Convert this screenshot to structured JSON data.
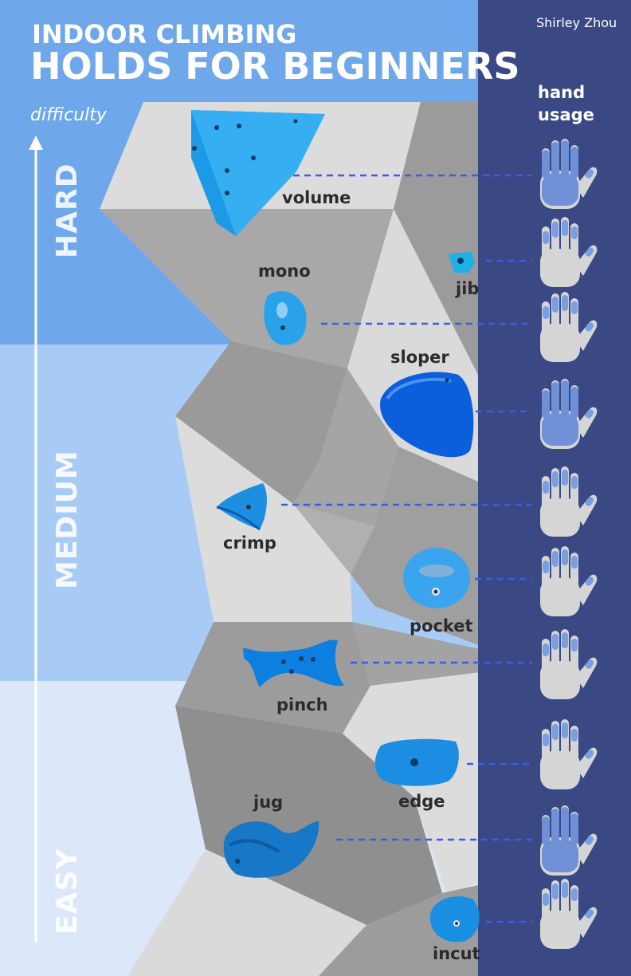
{
  "header": {
    "title_line1": "INDOOR CLIMBING",
    "title_line2": "HOLDS FOR BEGINNERS",
    "author": "Shirley Zhou"
  },
  "axis": {
    "label": "difficulty",
    "levels": [
      "HARD",
      "MEDIUM",
      "EASY"
    ]
  },
  "hand_column": {
    "header_line1": "hand",
    "header_line2": "usage"
  },
  "holds": [
    {
      "name": "volume",
      "whole_hand": true
    },
    {
      "name": "jib",
      "whole_hand": false
    },
    {
      "name": "mono",
      "whole_hand": false
    },
    {
      "name": "sloper",
      "whole_hand": true
    },
    {
      "name": "crimp",
      "whole_hand": false
    },
    {
      "name": "pocket",
      "whole_hand": false
    },
    {
      "name": "pinch",
      "whole_hand": false
    },
    {
      "name": "edge",
      "whole_hand": false
    },
    {
      "name": "jug",
      "whole_hand": true
    },
    {
      "name": "incut",
      "whole_hand": false
    }
  ],
  "colors": {
    "hard_band": "#6ea7ea",
    "medium_band": "#a8cbf5",
    "easy_band": "#dce8f9",
    "hand_column": "#3a4984",
    "dashed_line": "#3a5ce6",
    "hand_fill": "#d5d5d5",
    "finger_highlight": "#7a9ee2",
    "palm_highlight": "#6f90d6",
    "hold_blue": "#1e8fe0"
  }
}
